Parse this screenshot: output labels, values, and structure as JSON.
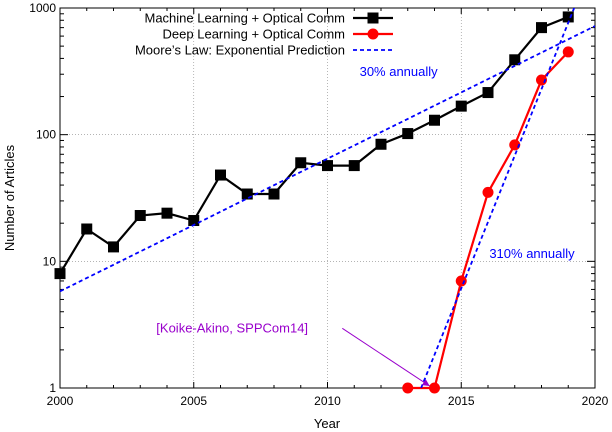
{
  "chart_data": {
    "type": "line",
    "title": "",
    "xlabel": "Year",
    "ylabel": "Number of Articles",
    "xlim": [
      2000,
      2020
    ],
    "ylim": [
      1,
      1000
    ],
    "yscale": "log",
    "grid": true,
    "legend_position": "top-left",
    "x_ticks": [
      2000,
      2005,
      2010,
      2015,
      2020
    ],
    "y_ticks": [
      1,
      10,
      100,
      1000
    ],
    "series": [
      {
        "name": "Machine Learning + Optical Comm",
        "color": "#000000",
        "marker": "square",
        "x": [
          2000,
          2001,
          2002,
          2003,
          2004,
          2005,
          2006,
          2007,
          2008,
          2009,
          2010,
          2011,
          2012,
          2013,
          2014,
          2015,
          2016,
          2017,
          2018,
          2019
        ],
        "values": [
          8,
          18,
          13,
          23,
          24,
          21,
          48,
          34,
          34,
          60,
          57,
          57,
          84,
          102,
          130,
          168,
          215,
          390,
          700,
          850
        ]
      },
      {
        "name": "Deep Learning + Optical Comm",
        "color": "#ff0000",
        "marker": "circle",
        "x": [
          2013,
          2014,
          2015,
          2016,
          2017,
          2018,
          2019
        ],
        "values": [
          1,
          1,
          7,
          35,
          83,
          270,
          450
        ]
      },
      {
        "name": "Moore’s Law: Exponential Prediction",
        "color": "#0000ff",
        "style": "dashed",
        "lines": [
          {
            "x": [
              2000,
              2020
            ],
            "values": [
              5.8,
              720
            ]
          },
          {
            "x": [
              2013.5,
              2019.5
            ],
            "values": [
              1,
              1400
            ]
          }
        ]
      }
    ],
    "annotations": [
      {
        "text": "30% annually",
        "color": "#0000ff",
        "x": 2011.2,
        "y": 290
      },
      {
        "text": "310% annually",
        "color": "#0000ff",
        "x": 2016.05,
        "y": 10.6
      },
      {
        "text": "[Koike-Akino, SPPCom14]",
        "color": "#9900cc",
        "x": 2003.6,
        "y": 2.75,
        "arrow_to": {
          "x": 2013.82,
          "y": 1.0
        }
      }
    ]
  }
}
